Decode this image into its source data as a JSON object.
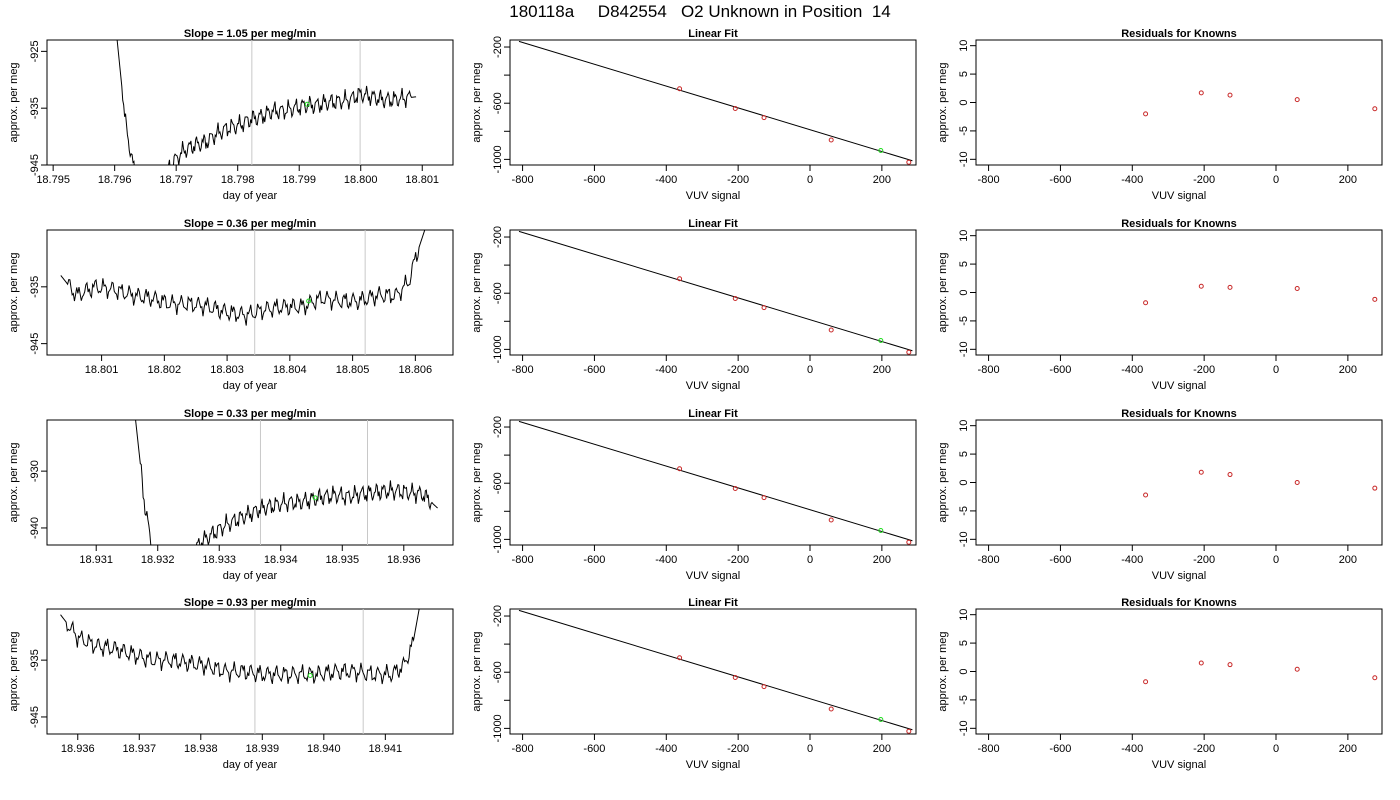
{
  "page_title": "180118a     D842554   O2 Unknown in Position  14",
  "colors": {
    "line": "#000000",
    "grid_vline": "#c8c8c8",
    "known_point": "#c82828",
    "unknown_point": "#22dd22"
  },
  "chart_data": [
    {
      "type": "line",
      "title": "Slope =  1.05  per meg/min",
      "xlabel": "day of year",
      "ylabel": "approx. per meg",
      "xlim": [
        18.7949,
        18.8015
      ],
      "ylim": [
        -945,
        -923
      ],
      "xticks": [
        18.795,
        18.796,
        18.797,
        18.798,
        18.799,
        18.8,
        18.801
      ],
      "xtick_labels": [
        "18.795",
        "18.796",
        "18.797",
        "18.798",
        "18.799",
        "18.800",
        "18.801"
      ],
      "yticks": [
        -925,
        -935,
        -945
      ],
      "ytick_labels": [
        "-925",
        "-935",
        "-945"
      ],
      "vlines": [
        18.79823,
        18.79999
      ],
      "marker": {
        "x": 18.79913,
        "y": -934.3
      },
      "series": [
        {
          "x": [
            18.79604,
            18.79618,
            18.79635,
            18.79675,
            18.79695,
            18.79712,
            18.7973,
            18.79748,
            18.79766,
            18.79784,
            18.79802,
            18.7982,
            18.79838,
            18.79856,
            18.79874,
            18.79892,
            18.7991,
            18.79928,
            18.79946,
            18.79964,
            18.79982,
            18.8,
            18.80018,
            18.80036,
            18.80054,
            18.80072,
            18.8009
          ],
          "y": [
            -923,
            -938,
            -948,
            -948,
            -944.5,
            -942.5,
            -941.5,
            -941,
            -939.5,
            -938.5,
            -938,
            -937,
            -936.5,
            -935.5,
            -935.5,
            -935,
            -934.5,
            -934.5,
            -934,
            -933.8,
            -933.5,
            -932.5,
            -933,
            -933.5,
            -933.5,
            -933.2,
            -933
          ]
        }
      ]
    },
    {
      "type": "line",
      "title": "Slope =  0.36  per meg/min",
      "xlabel": "day of year",
      "ylabel": "approx. per meg",
      "xlim": [
        18.80013,
        18.8066
      ],
      "ylim": [
        -947,
        -925
      ],
      "xticks": [
        18.801,
        18.802,
        18.803,
        18.804,
        18.805,
        18.806
      ],
      "xtick_labels": [
        "18.801",
        "18.802",
        "18.803",
        "18.804",
        "18.805",
        "18.806"
      ],
      "yticks": [
        -935,
        -945
      ],
      "ytick_labels": [
        "-935",
        "-945"
      ],
      "vlines": [
        18.80344,
        18.8052
      ],
      "marker": {
        "x": 18.8043,
        "y": -937.5
      },
      "series": [
        {
          "x": [
            18.80035,
            18.8006,
            18.8009,
            18.8012,
            18.8015,
            18.8018,
            18.8021,
            18.8024,
            18.8027,
            18.803,
            18.8033,
            18.8036,
            18.8039,
            18.8042,
            18.8045,
            18.8048,
            18.8051,
            18.8054,
            18.8057,
            18.8059,
            18.806,
            18.80615
          ],
          "y": [
            -933,
            -936.5,
            -935,
            -935.5,
            -936.5,
            -937,
            -938,
            -938,
            -938.5,
            -939.5,
            -940,
            -939,
            -938.5,
            -938.5,
            -937,
            -937.5,
            -937.5,
            -936.5,
            -936.5,
            -934,
            -930,
            -925
          ]
        }
      ]
    },
    {
      "type": "line",
      "title": "Slope =  0.33  per meg/min",
      "xlabel": "day of year",
      "ylabel": "approx. per meg",
      "xlim": [
        18.9302,
        18.9368
      ],
      "ylim": [
        -943,
        -921
      ],
      "xticks": [
        18.931,
        18.932,
        18.933,
        18.934,
        18.935,
        18.936
      ],
      "xtick_labels": [
        "18.931",
        "18.932",
        "18.933",
        "18.934",
        "18.935",
        "18.936"
      ],
      "yticks": [
        -930,
        -940
      ],
      "ytick_labels": [
        "-930",
        "-940"
      ],
      "vlines": [
        18.93367,
        18.93541
      ],
      "marker": {
        "x": 18.93456,
        "y": -934.7
      },
      "series": [
        {
          "x": [
            18.93164,
            18.9318,
            18.93196,
            18.93245,
            18.9327,
            18.9329,
            18.9331,
            18.9333,
            18.9335,
            18.9337,
            18.9339,
            18.9341,
            18.9343,
            18.9345,
            18.9347,
            18.9349,
            18.9351,
            18.9353,
            18.9355,
            18.9357,
            18.9359,
            18.9361,
            18.9363,
            18.93655
          ],
          "y": [
            -921,
            -937,
            -946,
            -946,
            -942.5,
            -941,
            -939.5,
            -938.5,
            -937.5,
            -936.5,
            -936,
            -935.5,
            -935.5,
            -935,
            -934.5,
            -934.2,
            -934.5,
            -934,
            -933.8,
            -933.5,
            -933.5,
            -933.8,
            -934,
            -936.5
          ]
        }
      ]
    },
    {
      "type": "line",
      "title": "Slope =  0.93  per meg/min",
      "xlabel": "day of year",
      "ylabel": "approx. per meg",
      "xlim": [
        18.9355,
        18.9421
      ],
      "ylim": [
        -948,
        -926
      ],
      "xticks": [
        18.936,
        18.937,
        18.938,
        18.939,
        18.94,
        18.941
      ],
      "xtick_labels": [
        "18.936",
        "18.937",
        "18.938",
        "18.939",
        "18.940",
        "18.941"
      ],
      "yticks": [
        -935,
        -945
      ],
      "ytick_labels": [
        "-935",
        "-945"
      ],
      "vlines": [
        18.93888,
        18.94064
      ],
      "marker": {
        "x": 18.93978,
        "y": -937.7
      },
      "series": [
        {
          "x": [
            18.93572,
            18.936,
            18.9363,
            18.9366,
            18.9369,
            18.9372,
            18.9375,
            18.9378,
            18.9381,
            18.9384,
            18.9387,
            18.939,
            18.9393,
            18.9396,
            18.9399,
            18.9402,
            18.9405,
            18.9408,
            18.9411,
            18.9413,
            18.94145,
            18.94155
          ],
          "y": [
            -927,
            -931,
            -932.5,
            -933,
            -934,
            -935,
            -935,
            -935.5,
            -936,
            -937,
            -937,
            -937.5,
            -937.5,
            -937.5,
            -937.5,
            -937,
            -937,
            -937.5,
            -937.5,
            -936,
            -932,
            -926
          ]
        }
      ]
    },
    {
      "type": "scatter",
      "title": "Linear Fit",
      "xlabel": "VUV signal",
      "ylabel": "approx. per meg",
      "xlim": [
        -835,
        295
      ],
      "ylim": [
        -1040,
        -150
      ],
      "xticks": [
        -800,
        -600,
        -400,
        -200,
        0,
        200
      ],
      "xtick_labels": [
        "-800",
        "-600",
        "-400",
        "-200",
        "0",
        "200"
      ],
      "yticks": [
        -200,
        -600,
        -1000
      ],
      "ytick_labels": [
        "-200",
        "-600",
        "-1000"
      ],
      "yminor_ticks": [
        -400,
        -800
      ],
      "fit_line": {
        "x": [
          -810,
          285
        ],
        "y": [
          -160,
          -1010
        ]
      },
      "known_points": {
        "x": [
          -363,
          -208,
          -128,
          59,
          275
        ],
        "y": [
          -497,
          -638,
          -703,
          -862,
          -1020
        ]
      },
      "unknown_points": {
        "x": [
          197
        ],
        "y": [
          -937
        ]
      }
    },
    {
      "type": "scatter",
      "title": "Residuals for Knowns",
      "xlabel": "VUV signal",
      "ylabel": "approx. per meg",
      "xlim": [
        -835,
        295
      ],
      "ylim": [
        -11,
        11
      ],
      "xticks": [
        -800,
        -600,
        -400,
        -200,
        0,
        200
      ],
      "xtick_labels": [
        "-800",
        "-600",
        "-400",
        "-200",
        "0",
        "200"
      ],
      "yticks": [
        -10,
        -5,
        0,
        5,
        10
      ],
      "ytick_labels": [
        "-10",
        "-5",
        "0",
        "5",
        "10"
      ],
      "rows": [
        {
          "x": [
            -363,
            -208,
            -128,
            59,
            275
          ],
          "y": [
            -2,
            1.7,
            1.3,
            0.5,
            -1.1
          ]
        },
        {
          "x": [
            -363,
            -208,
            -128,
            59,
            275
          ],
          "y": [
            -1.8,
            1.1,
            0.9,
            0.7,
            -1.2
          ]
        },
        {
          "x": [
            -363,
            -208,
            -128,
            59,
            275
          ],
          "y": [
            -2.2,
            1.8,
            1.4,
            0,
            -1
          ]
        },
        {
          "x": [
            -363,
            -208,
            -128,
            59,
            275
          ],
          "y": [
            -1.8,
            1.5,
            1.2,
            0.4,
            -1.1
          ]
        }
      ]
    }
  ]
}
